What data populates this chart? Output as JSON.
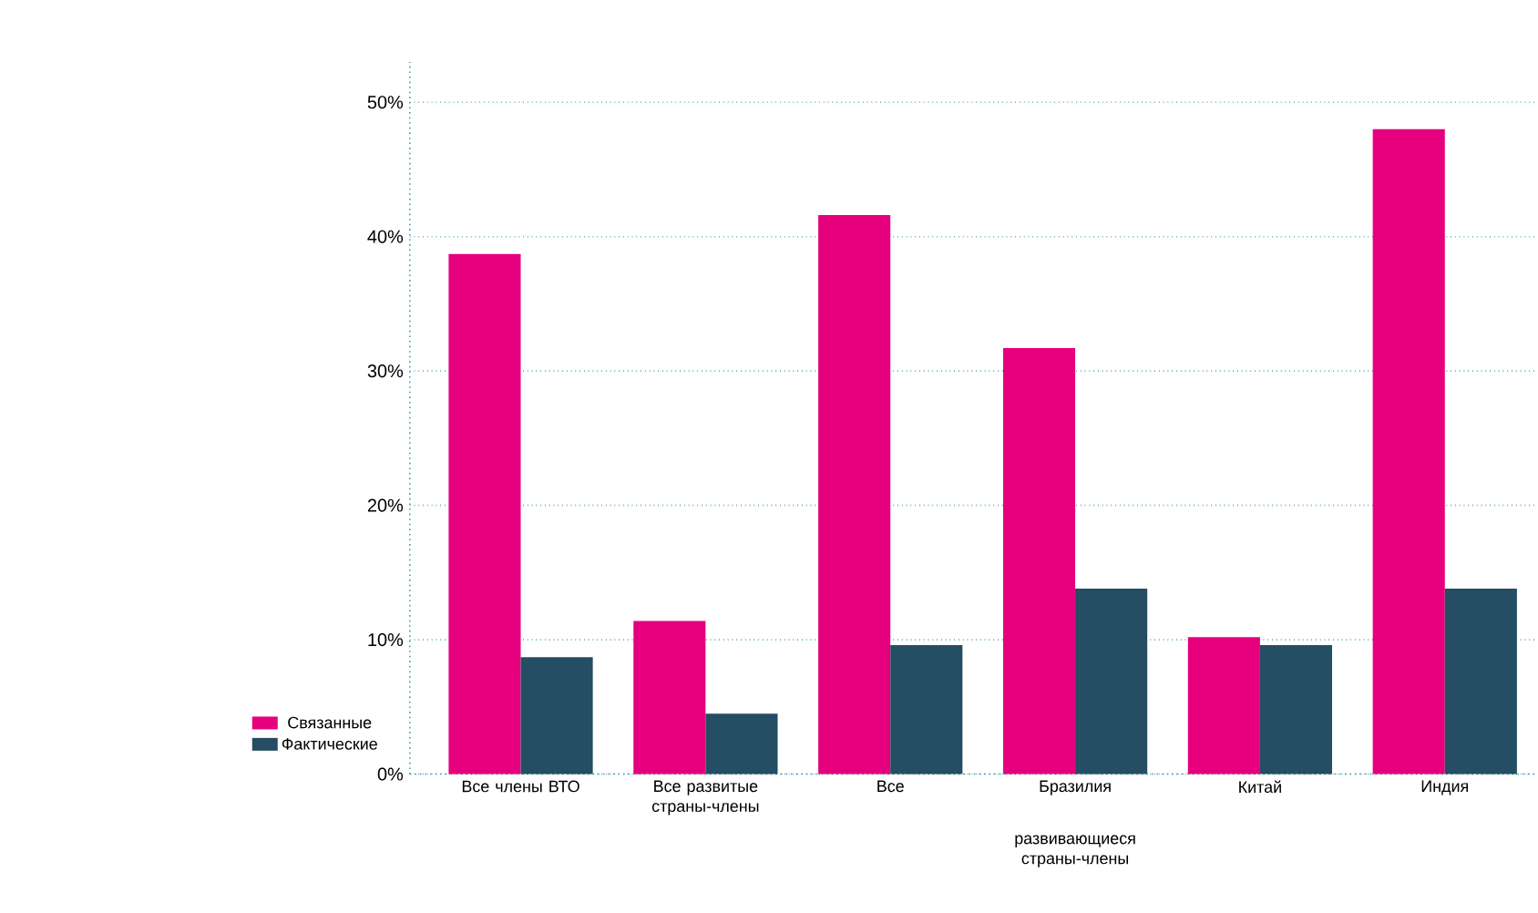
{
  "chart_data": {
    "type": "bar",
    "categories": [
      "Все члены ВТО",
      "Все развитые страны-члены",
      "Все",
      "Бразилия",
      "Китай",
      "Индия"
    ],
    "series": [
      {
        "name": "Связанные",
        "color": "#e6007e",
        "values": [
          38.7,
          11.4,
          41.6,
          31.7,
          10.2,
          48.0
        ]
      },
      {
        "name": "Фактические",
        "color": "#254d63",
        "values": [
          8.7,
          4.5,
          9.6,
          13.8,
          9.6,
          13.8
        ]
      }
    ],
    "ylim": [
      0,
      53
    ],
    "yticks": [
      {
        "value": 0,
        "label": "0%"
      },
      {
        "value": 10,
        "label": "10%"
      },
      {
        "value": 20,
        "label": "20%"
      },
      {
        "value": 30,
        "label": "30%"
      },
      {
        "value": 40,
        "label": "40%"
      },
      {
        "value": 50,
        "label": "50%"
      }
    ],
    "grid": "y",
    "legend": "left",
    "annotations": [
      "развивающиеся страны-члены"
    ]
  }
}
